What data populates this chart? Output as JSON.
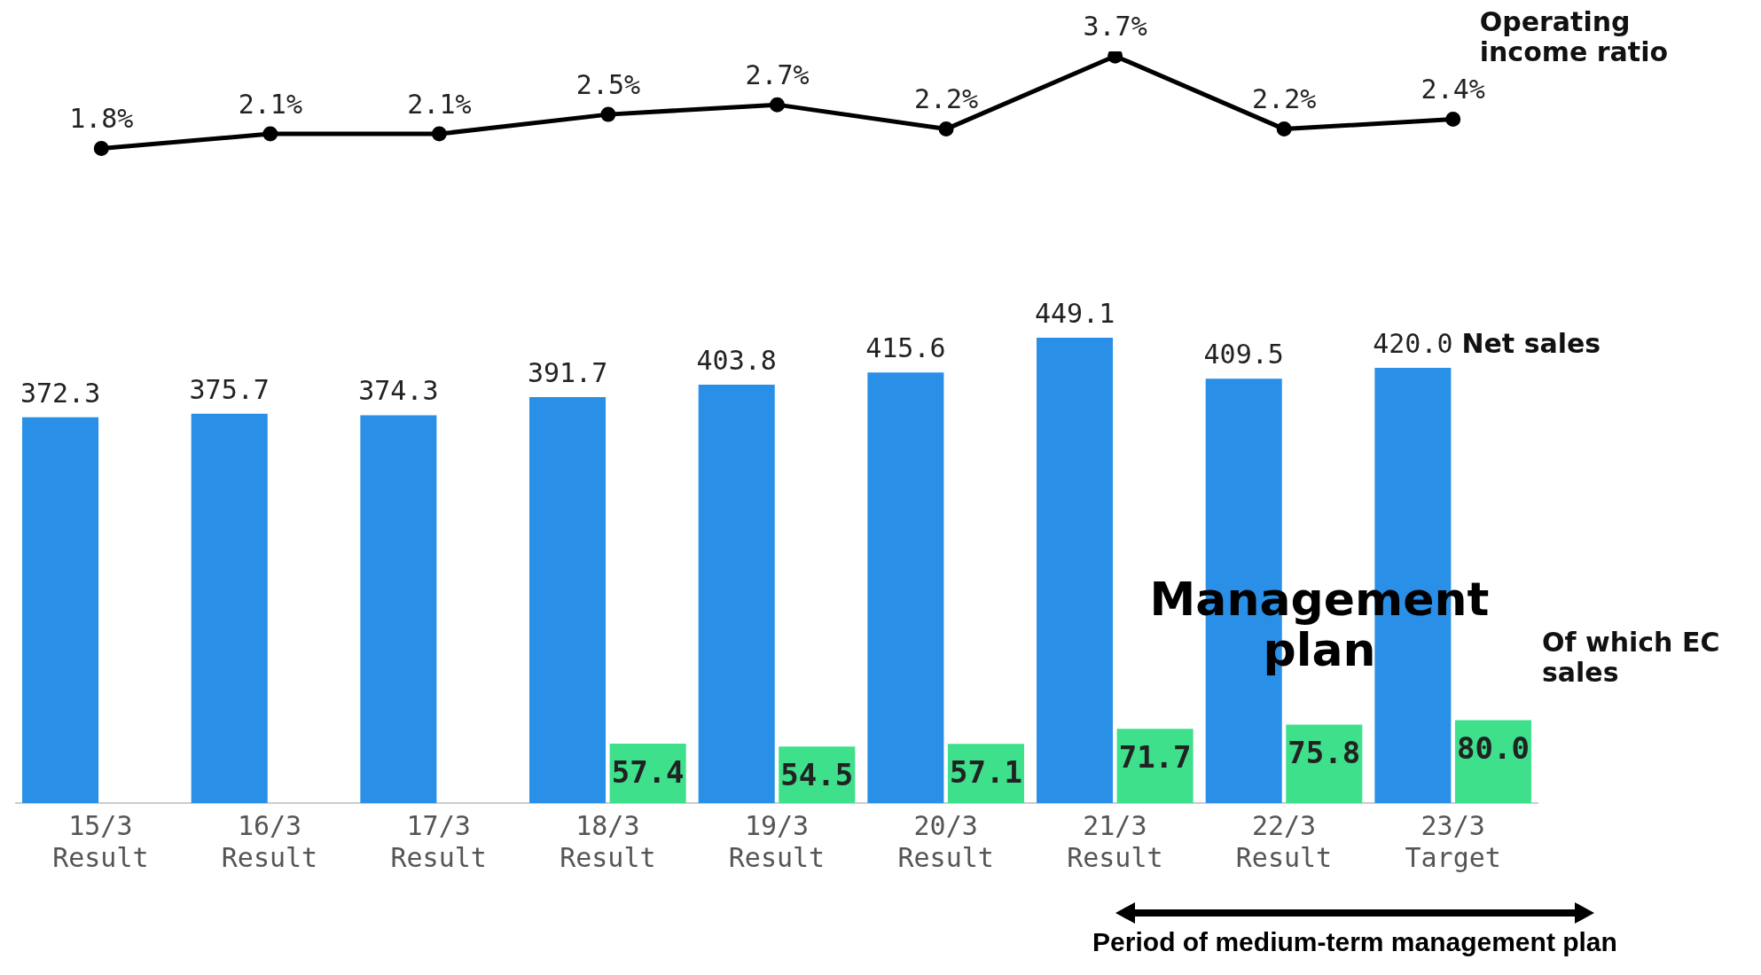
{
  "chart_data": [
    {
      "type": "line",
      "categories": [
        null,
        null,
        null,
        null,
        null,
        null,
        null,
        null,
        null
      ],
      "marker": "circle",
      "series": [
        {
          "name": "Operating income ratio",
          "color": "#000000",
          "values": [
            1.8,
            2.1,
            2.1,
            2.5,
            2.7,
            2.2,
            3.7,
            2.2,
            2.4
          ],
          "value_labels": [
            "1.8%",
            "2.1%",
            "2.1%",
            "2.5%",
            "2.7%",
            "2.2%",
            "3.7%",
            "2.2%",
            "2.4%"
          ]
        }
      ]
    },
    {
      "type": "bar",
      "categories": [
        "15/3 Result",
        "16/3 Result",
        "17/3 Result",
        "18/3 Result",
        "19/3 Result",
        "20/3 Result",
        "21/3 Result",
        "22/3 Result",
        "23/3 Target"
      ],
      "series": [
        {
          "name": "Net sales",
          "color": "#2a8fe6",
          "values": [
            372.3,
            375.7,
            374.3,
            391.7,
            403.8,
            415.6,
            449.1,
            409.5,
            420.0
          ],
          "value_labels": [
            "372.3",
            "375.7",
            "374.3",
            "391.7",
            "403.8",
            "415.6",
            "449.1",
            "409.5",
            "420.0"
          ]
        },
        {
          "name": "Of which EC sales",
          "color": "#3ee08c",
          "values": [
            null,
            null,
            null,
            57.4,
            54.5,
            57.1,
            71.7,
            75.8,
            80.0
          ],
          "value_labels": [
            null,
            null,
            null,
            "57.4",
            "54.5",
            "57.1",
            "71.7",
            "75.8",
            "80.0"
          ]
        }
      ],
      "annotations": [
        "Management plan",
        "Period of medium-term management plan"
      ]
    }
  ]
}
